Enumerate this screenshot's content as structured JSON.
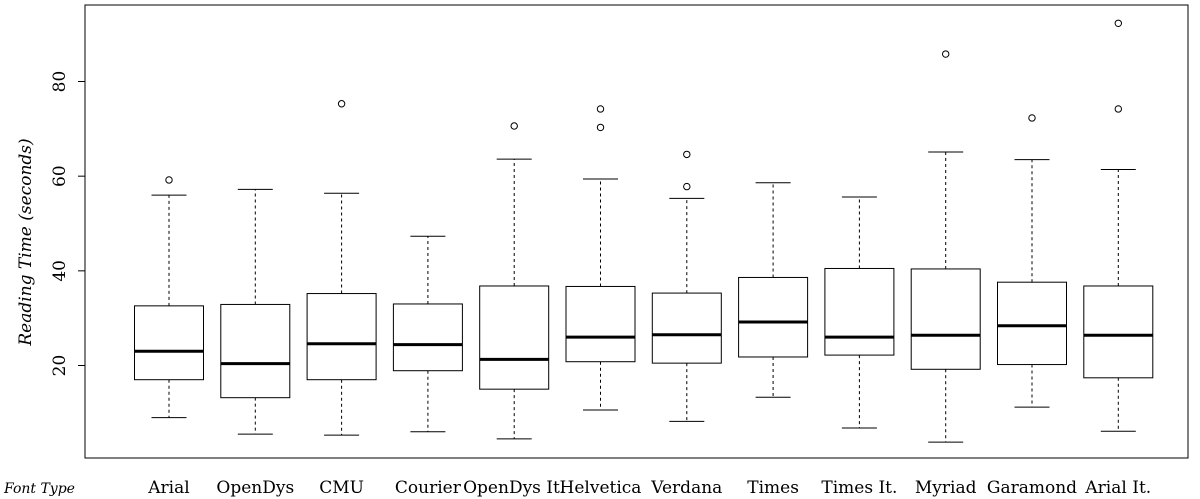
{
  "chart_data": {
    "type": "box",
    "ylabel": "Reading Time (seconds)",
    "xlabel": "Font Type",
    "ylim": [
      0,
      96
    ],
    "yticks": [
      20,
      40,
      60,
      80
    ],
    "grid": false,
    "legend": "none",
    "boxes": [
      {
        "category": "Arial",
        "whisker_low": 9.0,
        "q1": 17.0,
        "median": 23.0,
        "q3": 32.6,
        "whisker_high": 56.0,
        "outliers": [
          59.2
        ]
      },
      {
        "category": "OpenDys",
        "whisker_low": 5.5,
        "q1": 13.2,
        "median": 20.4,
        "q3": 32.9,
        "whisker_high": 57.2,
        "outliers": []
      },
      {
        "category": "CMU",
        "whisker_low": 5.3,
        "q1": 17.0,
        "median": 24.6,
        "q3": 35.2,
        "whisker_high": 56.4,
        "outliers": [
          75.3
        ]
      },
      {
        "category": "Courier",
        "whisker_low": 6.0,
        "q1": 18.9,
        "median": 24.4,
        "q3": 33.0,
        "whisker_high": 47.3,
        "outliers": []
      },
      {
        "category": "OpenDys It.",
        "whisker_low": 4.5,
        "q1": 15.0,
        "median": 21.3,
        "q3": 36.8,
        "whisker_high": 63.6,
        "outliers": [
          70.6
        ]
      },
      {
        "category": "Helvetica",
        "whisker_low": 10.6,
        "q1": 20.8,
        "median": 26.0,
        "q3": 36.7,
        "whisker_high": 59.4,
        "outliers": [
          70.3,
          74.2
        ]
      },
      {
        "category": "Verdana",
        "whisker_low": 8.2,
        "q1": 20.5,
        "median": 26.5,
        "q3": 35.3,
        "whisker_high": 55.3,
        "outliers": [
          57.8,
          64.6
        ]
      },
      {
        "category": "Times",
        "whisker_low": 13.3,
        "q1": 21.8,
        "median": 29.2,
        "q3": 38.6,
        "whisker_high": 58.6,
        "outliers": []
      },
      {
        "category": "Times It.",
        "whisker_low": 6.8,
        "q1": 22.2,
        "median": 26.0,
        "q3": 40.5,
        "whisker_high": 55.6,
        "outliers": []
      },
      {
        "category": "Myriad",
        "whisker_low": 3.8,
        "q1": 19.2,
        "median": 26.4,
        "q3": 40.4,
        "whisker_high": 65.1,
        "outliers": [
          85.8
        ]
      },
      {
        "category": "Garamond",
        "whisker_low": 11.2,
        "q1": 20.2,
        "median": 28.4,
        "q3": 37.6,
        "whisker_high": 63.5,
        "outliers": [
          72.3
        ]
      },
      {
        "category": "Arial It.",
        "whisker_low": 6.1,
        "q1": 17.4,
        "median": 26.4,
        "q3": 36.8,
        "whisker_high": 61.4,
        "outliers": [
          74.2,
          92.3
        ]
      }
    ]
  }
}
